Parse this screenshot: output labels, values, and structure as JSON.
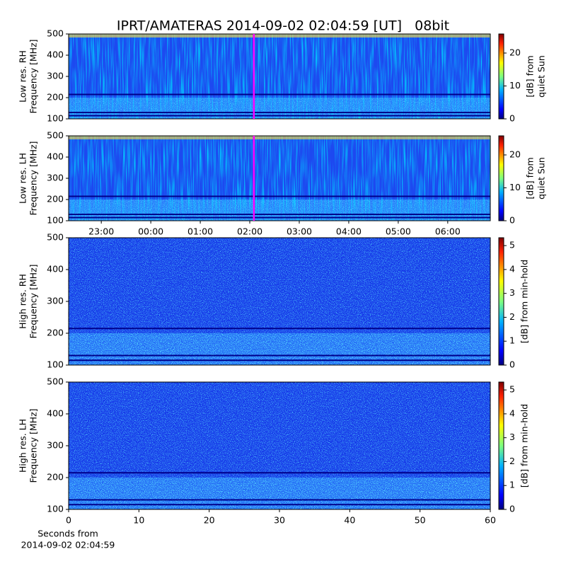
{
  "title": "IPRT/AMATERAS 2014-09-02 02:04:59 [UT]   08bit",
  "chart_data": [
    {
      "type": "spectrogram",
      "ylabel": [
        "Low res. RH",
        "Frequency [MHz]"
      ],
      "ylim": [
        100,
        500
      ],
      "yticks": [
        100,
        200,
        300,
        400,
        500
      ],
      "xlim": [
        -1.66,
        6.86
      ],
      "marker_x": 2.0831,
      "marker_color": "#ff00ff",
      "colorbar": {
        "label": [
          "[dB] from",
          "quiet Sun"
        ],
        "lim": [
          0,
          25.8
        ],
        "ticks": [
          0,
          10,
          20
        ]
      }
    },
    {
      "type": "spectrogram",
      "ylabel": [
        "Low res. LH",
        "Frequency [MHz]"
      ],
      "ylim": [
        100,
        500
      ],
      "yticks": [
        100,
        200,
        300,
        400,
        500
      ],
      "xlim": [
        -1.66,
        6.86
      ],
      "marker_x": 2.0831,
      "marker_color": "#ff00ff",
      "xticks": [
        {
          "value": -1,
          "label": "23:00"
        },
        {
          "value": 0,
          "label": "00:00"
        },
        {
          "value": 1,
          "label": "01:00"
        },
        {
          "value": 2,
          "label": "02:00"
        },
        {
          "value": 3,
          "label": "03:00"
        },
        {
          "value": 4,
          "label": "04:00"
        },
        {
          "value": 5,
          "label": "05:00"
        },
        {
          "value": 6,
          "label": "06:00"
        }
      ],
      "colorbar": {
        "label": [
          "[dB] from",
          "quiet Sun"
        ],
        "lim": [
          0,
          25.8
        ],
        "ticks": [
          0,
          10,
          20
        ]
      }
    },
    {
      "type": "spectrogram",
      "ylabel": [
        "High res. RH",
        "Frequency [MHz]"
      ],
      "ylim": [
        100,
        500
      ],
      "yticks": [
        100,
        200,
        300,
        400,
        500
      ],
      "xlim": [
        0,
        60
      ],
      "colorbar": {
        "label": [
          "[dB] from min-hold"
        ],
        "lim": [
          0,
          5.33
        ],
        "ticks": [
          0,
          1,
          2,
          3,
          4,
          5
        ]
      }
    },
    {
      "type": "spectrogram",
      "ylabel": [
        "High res. LH",
        "Frequency [MHz]"
      ],
      "ylim": [
        100,
        500
      ],
      "yticks": [
        100,
        200,
        300,
        400,
        500
      ],
      "xlim": [
        0,
        60
      ],
      "xticks": [
        0,
        10,
        20,
        30,
        40,
        50,
        60
      ],
      "xlabel": [
        "Seconds from",
        "2014-09-02 02:04:59"
      ],
      "colorbar": {
        "label": [
          "[dB] from min-hold"
        ],
        "lim": [
          0,
          5.33
        ],
        "ticks": [
          0,
          1,
          2,
          3,
          4,
          5
        ]
      }
    }
  ]
}
